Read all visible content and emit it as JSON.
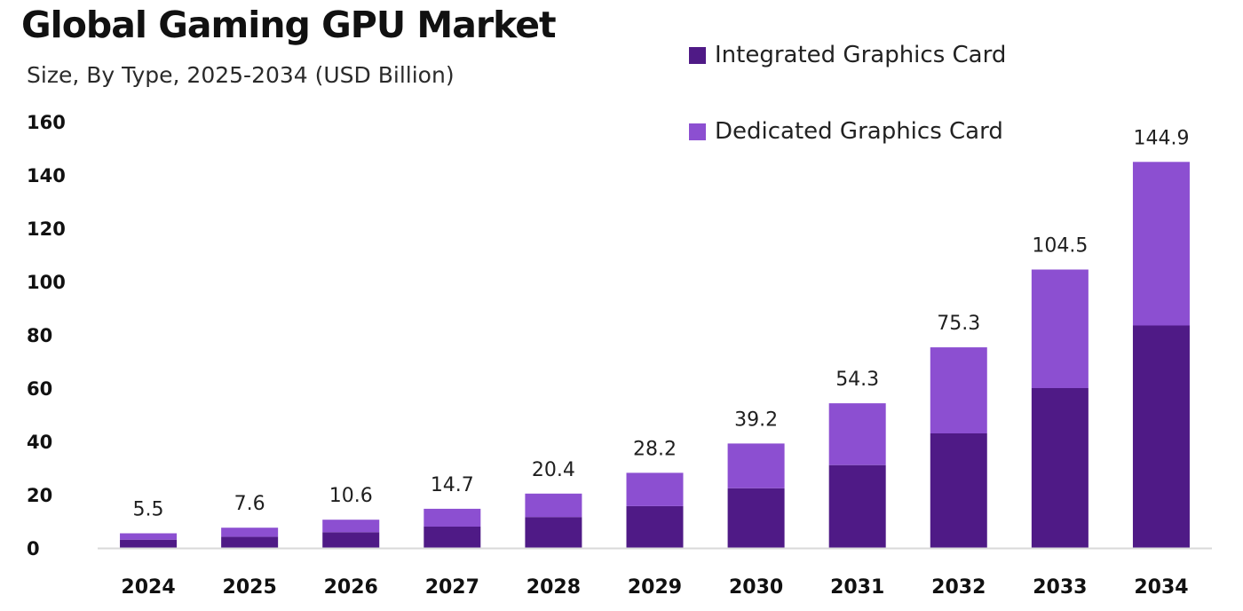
{
  "chart_data": {
    "type": "bar",
    "stacked": true,
    "title": "Global Gaming GPU Market",
    "subtitle": "Size, By Type, 2025-2034 (USD Billion)",
    "xlabel": "",
    "ylabel": "",
    "ylim": [
      0,
      160
    ],
    "yticks": [
      0,
      20,
      40,
      60,
      80,
      100,
      120,
      140,
      160
    ],
    "grid": false,
    "legend_position": "top-right",
    "categories": [
      "2024",
      "2025",
      "2026",
      "2027",
      "2028",
      "2029",
      "2030",
      "2031",
      "2032",
      "2033",
      "2034"
    ],
    "series": [
      {
        "name": "Integrated Graphics Card",
        "color": "#4f1a86",
        "values": [
          3.1,
          4.2,
          5.9,
          8.0,
          11.6,
          15.7,
          22.4,
          31.1,
          43.0,
          60.0,
          83.5
        ]
      },
      {
        "name": "Dedicated Graphics Card",
        "color": "#8c4fd1",
        "values": [
          2.4,
          3.4,
          4.7,
          6.7,
          8.8,
          12.5,
          16.8,
          23.2,
          32.3,
          44.5,
          61.4
        ]
      }
    ],
    "totals": [
      "5.5",
      "7.6",
      "10.6",
      "14.7",
      "20.4",
      "28.2",
      "39.2",
      "54.3",
      "75.3",
      "104.5",
      "144.9"
    ],
    "axis_color": "#d9d9d9"
  }
}
